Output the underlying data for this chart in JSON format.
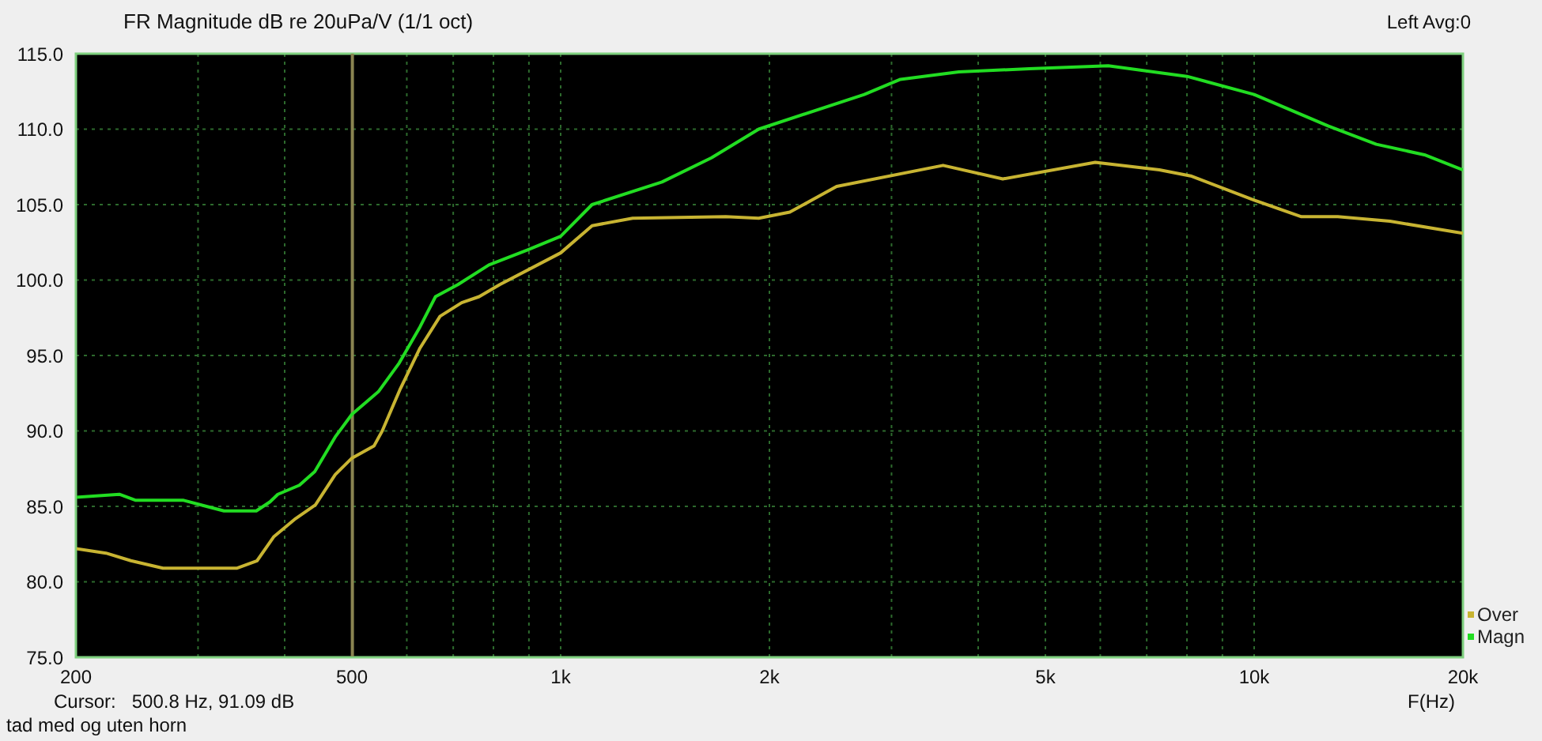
{
  "chart_data": {
    "type": "line",
    "title": "FR Magnitude dB re 20uPa/V (1/1 oct)",
    "xlabel": "F(Hz)",
    "annotations": [
      "Left  Avg:0",
      "Cursor:   500.8 Hz, 91.09 dB",
      "tad med og uten horn"
    ],
    "xlim": [
      200,
      20000
    ],
    "ylim": [
      75,
      115
    ],
    "xticks": [
      200,
      {
        "value": 300,
        "label": null
      },
      {
        "value": 400,
        "label": null
      },
      500,
      {
        "value": 600,
        "label": null
      },
      {
        "value": 700,
        "label": null
      },
      {
        "value": 800,
        "label": null
      },
      {
        "value": 900,
        "label": null
      },
      {
        "value": 1000,
        "label": "1k"
      },
      {
        "value": 2000,
        "label": "2k"
      },
      {
        "value": 3000,
        "label": null
      },
      {
        "value": 4000,
        "label": null
      },
      {
        "value": 5000,
        "label": "5k"
      },
      {
        "value": 6000,
        "label": null
      },
      {
        "value": 7000,
        "label": null
      },
      {
        "value": 8000,
        "label": null
      },
      {
        "value": 9000,
        "label": null
      },
      {
        "value": 10000,
        "label": "10k"
      },
      {
        "value": 20000,
        "label": "20k"
      }
    ],
    "yticks": [
      {
        "value": 75,
        "label": "75.0"
      },
      {
        "value": 80,
        "label": "80.0"
      },
      {
        "value": 85,
        "label": "85.0"
      },
      {
        "value": 90,
        "label": "90.0"
      },
      {
        "value": 95,
        "label": "95.0"
      },
      {
        "value": 100,
        "label": "100.0"
      },
      {
        "value": 105,
        "label": "105.0"
      },
      {
        "value": 110,
        "label": "110.0"
      },
      {
        "value": 115,
        "label": "115.0"
      }
    ],
    "grid": true,
    "log": "x",
    "legend": "bottom right",
    "line_style": "solid",
    "marker": "none",
    "ref_lines": [
      {
        "axis": "x",
        "value": 500.8,
        "color": "#8a8450"
      }
    ],
    "series": [
      {
        "name": "Over",
        "color": "#c8b432",
        "x": [
          200,
          221,
          240,
          267,
          341,
          365,
          386,
          415,
          443,
          473,
          500,
          538,
          553,
          586,
          627,
          670,
          720,
          763,
          817,
          1000,
          1110,
          1270,
          1730,
          1930,
          2140,
          2500,
          3560,
          4340,
          5900,
          7300,
          8100,
          10000,
          11700,
          13200,
          15700,
          20000
        ],
        "values": [
          82.2,
          81.9,
          81.4,
          80.9,
          80.9,
          81.4,
          83.0,
          84.2,
          85.1,
          87.1,
          88.2,
          89.0,
          90.0,
          92.7,
          95.5,
          97.6,
          98.5,
          98.9,
          99.7,
          101.8,
          103.6,
          104.1,
          104.2,
          104.1,
          104.5,
          106.2,
          107.6,
          106.7,
          107.8,
          107.3,
          106.9,
          105.3,
          104.2,
          104.2,
          103.9,
          103.1
        ]
      },
      {
        "name": "Magn",
        "color": "#22dd22",
        "x": [
          200,
          231,
          244,
          286,
          327,
          364,
          381,
          391,
          420,
          442,
          473,
          500,
          546,
          585,
          627,
          660,
          711,
          788,
          896,
          1000,
          1110,
          1400,
          1650,
          1930,
          2740,
          3090,
          3750,
          4740,
          6160,
          8000,
          10000,
          12800,
          15000,
          17600,
          20000
        ],
        "values": [
          85.6,
          85.8,
          85.4,
          85.4,
          84.7,
          84.7,
          85.3,
          85.8,
          86.4,
          87.3,
          89.6,
          91.1,
          92.6,
          94.5,
          96.9,
          98.9,
          99.7,
          101.0,
          102.0,
          102.9,
          105.0,
          106.5,
          108.1,
          110.0,
          112.3,
          113.3,
          113.8,
          114.0,
          114.2,
          113.5,
          112.3,
          110.2,
          109.0,
          108.3,
          107.3
        ]
      }
    ]
  }
}
